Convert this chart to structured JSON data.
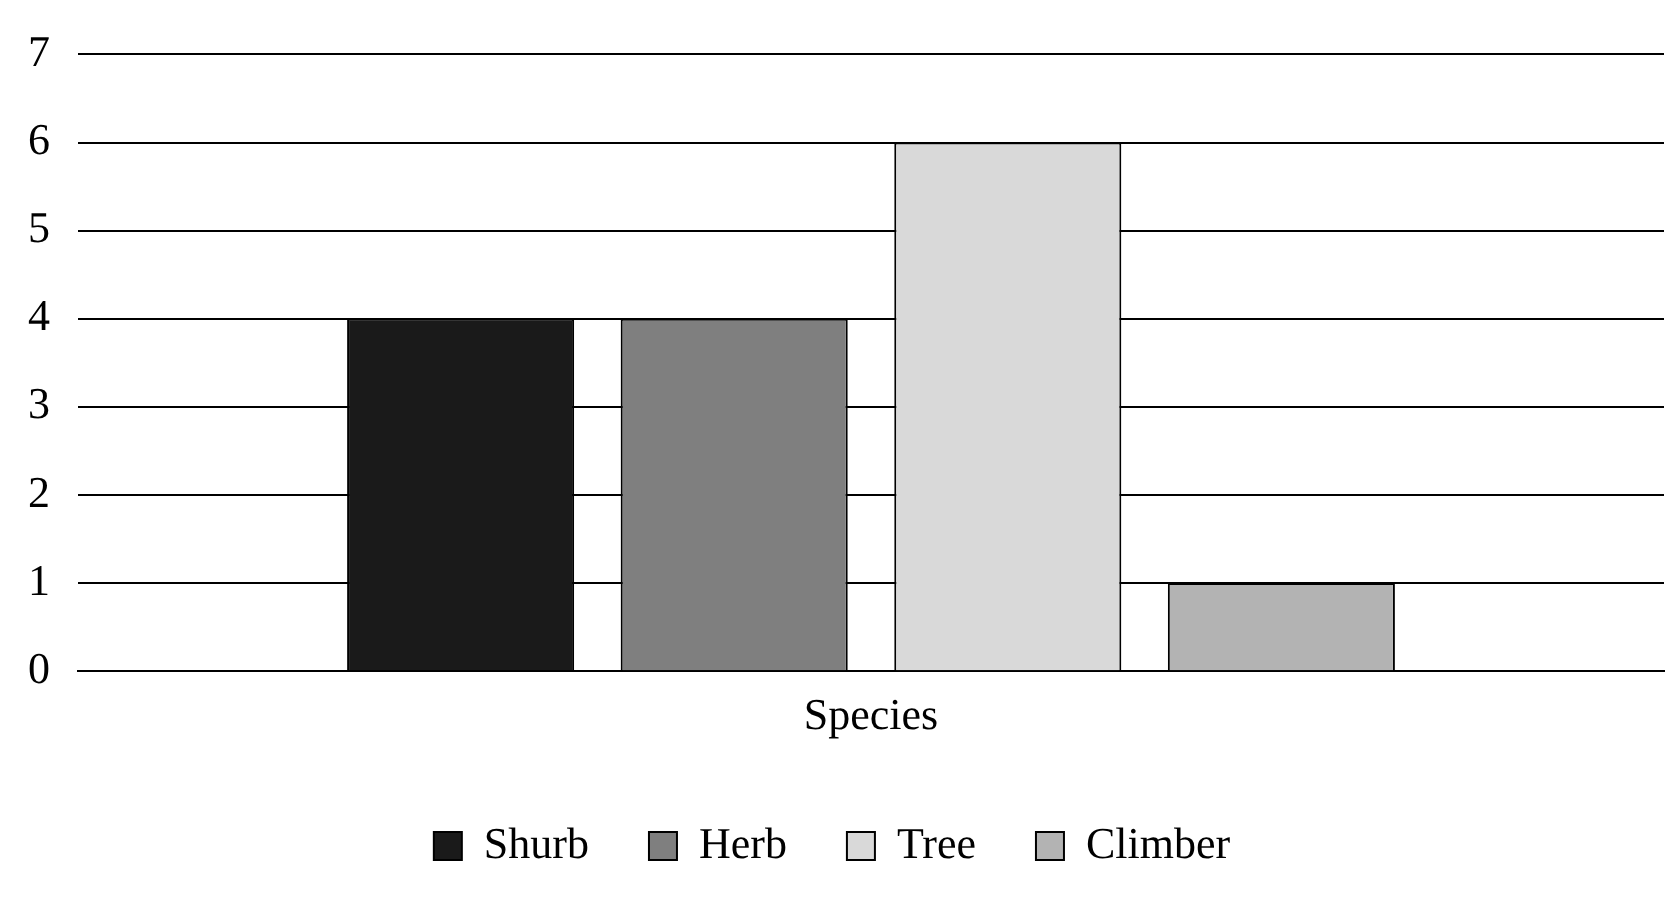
{
  "chart_data": {
    "type": "bar",
    "categories": [
      "Species"
    ],
    "series": [
      {
        "name": "Shurb",
        "color": "#1a1a1a",
        "values": [
          4
        ]
      },
      {
        "name": "Herb",
        "color": "#7f7f7f",
        "values": [
          4
        ]
      },
      {
        "name": "Tree",
        "color": "#d9d9d9",
        "values": [
          6
        ]
      },
      {
        "name": "Climber",
        "color": "#b3b3b3",
        "values": [
          1
        ]
      }
    ],
    "ylim": [
      0,
      7
    ],
    "yticks": [
      0,
      1,
      2,
      3,
      4,
      5,
      6,
      7
    ],
    "grid": "y",
    "legend": "bottom"
  }
}
